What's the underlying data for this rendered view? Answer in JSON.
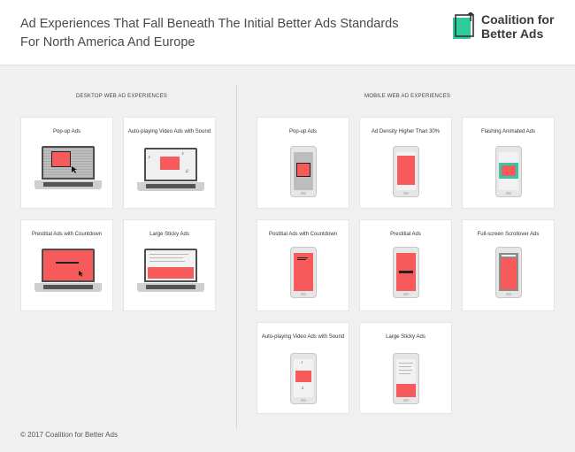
{
  "header": {
    "title": "Ad Experiences That Fall Beneath The Initial Better Ads Standards For North America And Europe",
    "logo_line1": "Coalition for",
    "logo_line2": "Better Ads",
    "logo_color": "#2ecc9a"
  },
  "desktop": {
    "heading": "DESKTOP WEB AD EXPERIENCES",
    "cards": [
      {
        "label": "Pop-up Ads"
      },
      {
        "label": "Auto-playing Video Ads with Sound"
      },
      {
        "label": "Prestitial Ads with Countdown"
      },
      {
        "label": "Large Sticky Ads"
      }
    ]
  },
  "mobile": {
    "heading": "MOBILE WEB AD EXPERIENCES",
    "cards": [
      {
        "label": "Pop-up Ads"
      },
      {
        "label": "Ad Density Higher Than 30%"
      },
      {
        "label": "Flashing Animated Ads"
      },
      {
        "label": "Postitial Ads with Countdown"
      },
      {
        "label": "Prestitial Ads"
      },
      {
        "label": "Full-screen Scrollover Ads"
      },
      {
        "label": "Auto-playing Video Ads with Sound"
      },
      {
        "label": "Large Sticky Ads"
      }
    ]
  },
  "footer": {
    "copyright": "© 2017 Coalition for Better Ads"
  },
  "colors": {
    "ad_red": "#f65a5a",
    "accent_teal": "#33c9a6"
  },
  "icons": [
    "coalition-logo-icon",
    "laptop-icon",
    "phone-icon",
    "cursor-icon",
    "music-note-icon"
  ]
}
